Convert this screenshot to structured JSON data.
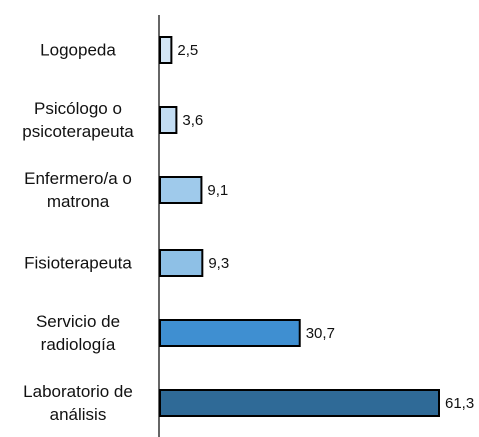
{
  "chart_data": {
    "type": "bar",
    "orientation": "horizontal",
    "categories": [
      "Logopeda",
      "Psicólogo o psicoterapeuta",
      "Enfermero/a o matrona",
      "Fisioterapeuta",
      "Servicio de radiología",
      "Laboratorio de análisis"
    ],
    "values": [
      2.5,
      3.6,
      9.1,
      9.3,
      30.7,
      61.3
    ],
    "value_labels": [
      "2,5",
      "3,6",
      "9,1",
      "9,3",
      "30,7",
      "61,3"
    ],
    "colors": [
      "#d3e6f6",
      "#c3ddf3",
      "#9fcaeb",
      "#8ec0e6",
      "#3f8fd1",
      "#2f6a97"
    ]
  }
}
